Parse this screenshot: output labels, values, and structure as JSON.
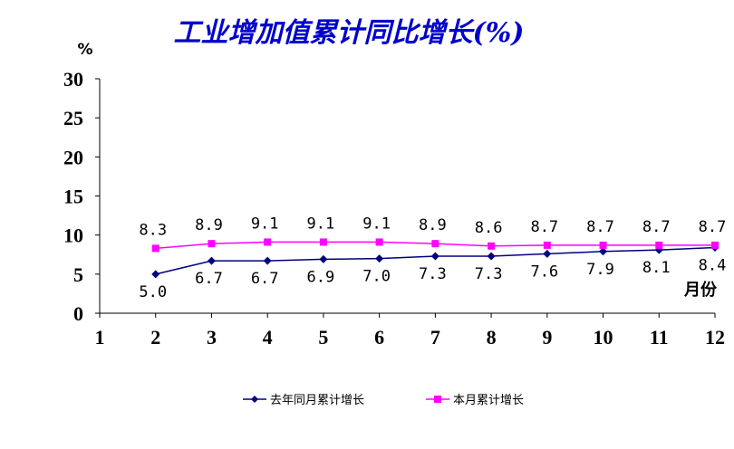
{
  "chart_data": {
    "type": "line",
    "title": "工业增加值累计同比增长(%)",
    "ylabel": "%",
    "xlabel": "月份",
    "ylim": [
      0,
      30
    ],
    "yticks": [
      0,
      5,
      10,
      15,
      20,
      25,
      30
    ],
    "xticks": [
      1,
      2,
      3,
      4,
      5,
      6,
      7,
      8,
      9,
      10,
      11,
      12
    ],
    "grid": false,
    "legend_position": "bottom",
    "series": [
      {
        "name": "去年同月累计增长",
        "color": "#000080",
        "marker": "diamond",
        "x": [
          2,
          3,
          4,
          5,
          6,
          7,
          8,
          9,
          10,
          11,
          12
        ],
        "values": [
          5.0,
          6.7,
          6.7,
          6.9,
          7.0,
          7.3,
          7.3,
          7.6,
          7.9,
          8.1,
          8.4
        ],
        "labels": [
          "5.0",
          "6.7",
          "6.7",
          "6.9",
          "7.0",
          "7.3",
          "7.3",
          "7.6",
          "7.9",
          "8.1",
          "8.4"
        ]
      },
      {
        "name": "本月累计增长",
        "color": "#ff00ff",
        "marker": "square",
        "x": [
          2,
          3,
          4,
          5,
          6,
          7,
          8,
          9,
          10,
          11,
          12
        ],
        "values": [
          8.3,
          8.9,
          9.1,
          9.1,
          9.1,
          8.9,
          8.6,
          8.7,
          8.7,
          8.7,
          8.7
        ],
        "labels": [
          "8.3",
          "8.9",
          "9.1",
          "9.1",
          "9.1",
          "8.9",
          "8.6",
          "8.7",
          "8.7",
          "8.7",
          "8.7"
        ]
      }
    ]
  }
}
